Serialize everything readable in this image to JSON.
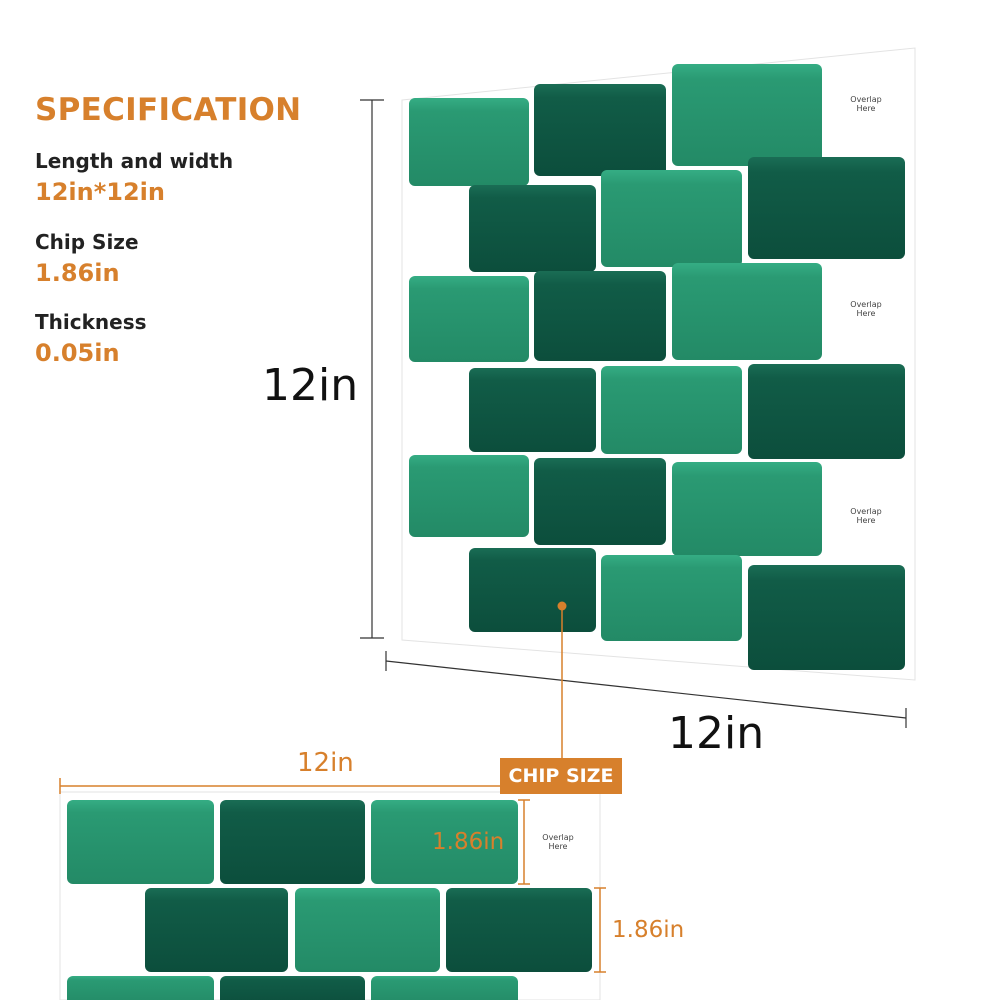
{
  "spec": {
    "title": "SPECIFICATION",
    "items": [
      {
        "label": "Length and width",
        "value": "12in*12in"
      },
      {
        "label": "Chip Size",
        "value": "1.86in"
      },
      {
        "label": "Thickness",
        "value": "0.05in"
      }
    ]
  },
  "dimensions": {
    "height_label": "12in",
    "width_label": "12in"
  },
  "detail": {
    "width_label": "12in",
    "chip_badge": "CHIP SIZE",
    "chip_height_1": "1.86in",
    "chip_height_2": "1.86in"
  },
  "overlap": {
    "line1": "Overlap",
    "line2": "Here"
  },
  "colors": {
    "accent": "#d7802c",
    "tile_light": "#2a9a73",
    "tile_dark": "#0f5a45"
  }
}
